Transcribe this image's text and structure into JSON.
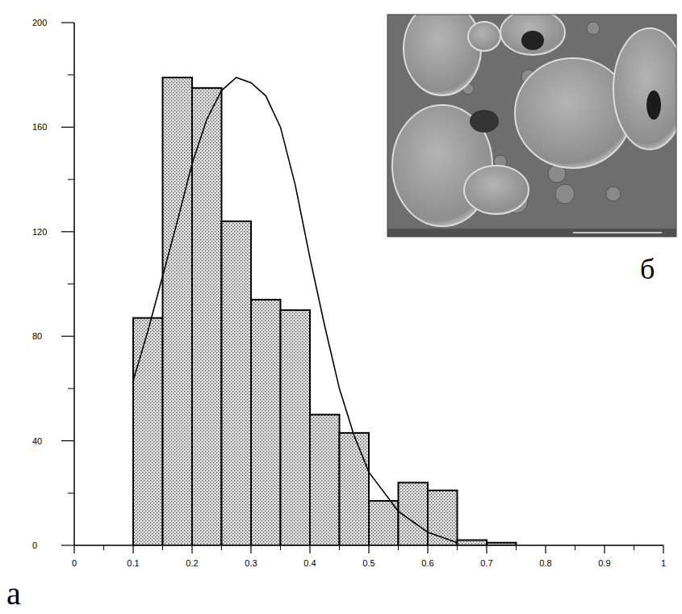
{
  "chart_data": {
    "type": "histogram",
    "bins": [
      0.1,
      0.15,
      0.2,
      0.25,
      0.3,
      0.35,
      0.4,
      0.45,
      0.5,
      0.55,
      0.6,
      0.65,
      0.7,
      0.75
    ],
    "values": [
      87,
      179,
      175,
      124,
      94,
      90,
      50,
      43,
      17,
      24,
      21,
      2,
      1
    ],
    "color": "#444444",
    "curve": {
      "type": "line",
      "color": "#000000",
      "x": [
        0.1,
        0.125,
        0.15,
        0.175,
        0.2,
        0.225,
        0.25,
        0.275,
        0.3,
        0.325,
        0.35,
        0.375,
        0.4,
        0.425,
        0.45,
        0.475,
        0.5,
        0.55,
        0.6,
        0.65
      ],
      "values": [
        63,
        82,
        103,
        124,
        146,
        163,
        174,
        179,
        177,
        172,
        160,
        138,
        110,
        84,
        60,
        42,
        28,
        13,
        5,
        1
      ]
    },
    "xlim": [
      0,
      1
    ],
    "xticks": [
      0,
      0.1,
      0.2,
      0.3,
      0.4,
      0.5,
      0.6,
      0.7,
      0.8,
      0.9,
      1
    ],
    "ylim": [
      0,
      200
    ],
    "yticks": [
      0,
      40,
      80,
      120,
      160,
      200
    ],
    "grid": false,
    "panel_labels": {
      "chart": "а",
      "inset": "б"
    }
  }
}
